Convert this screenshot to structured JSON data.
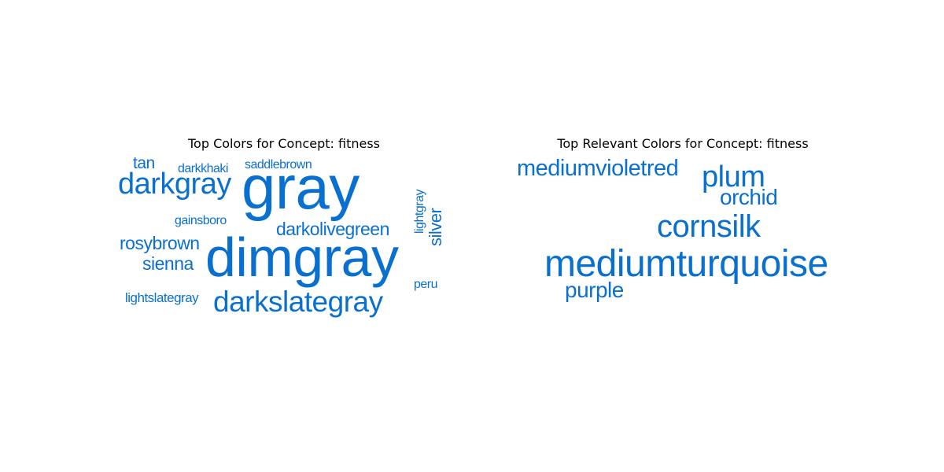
{
  "word_color": "#0a70d0",
  "panels": [
    {
      "title": "Top Colors for Concept: fitness",
      "words": [
        {
          "text": "tan"
        },
        {
          "text": "darkkhaki"
        },
        {
          "text": "saddlebrown"
        },
        {
          "text": "darkgray"
        },
        {
          "text": "gray"
        },
        {
          "text": "lightgray",
          "orientation": "vertical"
        },
        {
          "text": "silver",
          "orientation": "vertical"
        },
        {
          "text": "gainsboro"
        },
        {
          "text": "darkolivegreen"
        },
        {
          "text": "rosybrown"
        },
        {
          "text": "dimgray"
        },
        {
          "text": "sienna"
        },
        {
          "text": "peru"
        },
        {
          "text": "lightslategray"
        },
        {
          "text": "darkslategray"
        }
      ]
    },
    {
      "title": "Top Relevant Colors for Concept: fitness",
      "words": [
        {
          "text": "mediumvioletred"
        },
        {
          "text": "plum"
        },
        {
          "text": "orchid"
        },
        {
          "text": "cornsilk"
        },
        {
          "text": "mediumturquoise"
        },
        {
          "text": "purple"
        }
      ]
    }
  ]
}
